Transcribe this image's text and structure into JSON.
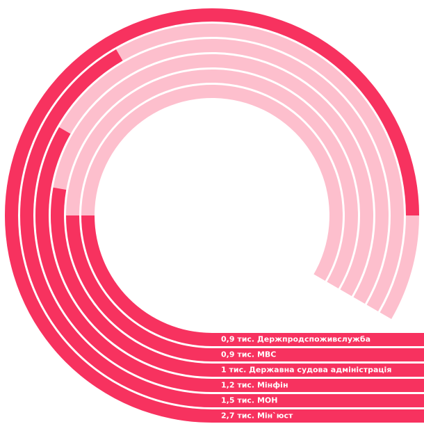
{
  "chart_data": {
    "type": "radial-bar",
    "categories": [
      "Держпродспоживслужба",
      "МВС",
      "Державна судова адміністрація",
      "Мінфін",
      "МОН",
      "Мін`юст"
    ],
    "values": [
      0.9,
      0.9,
      1,
      1.2,
      1.5,
      2.7
    ],
    "value_labels": [
      "0,9 тис.",
      "0,9 тис.",
      "1 тис.",
      "1,2 тис.",
      "1,5 тис.",
      "2,7 тис."
    ],
    "xlim": [
      0,
      3
    ],
    "color": "#f7325f",
    "track_color": "#fdbfcd"
  }
}
